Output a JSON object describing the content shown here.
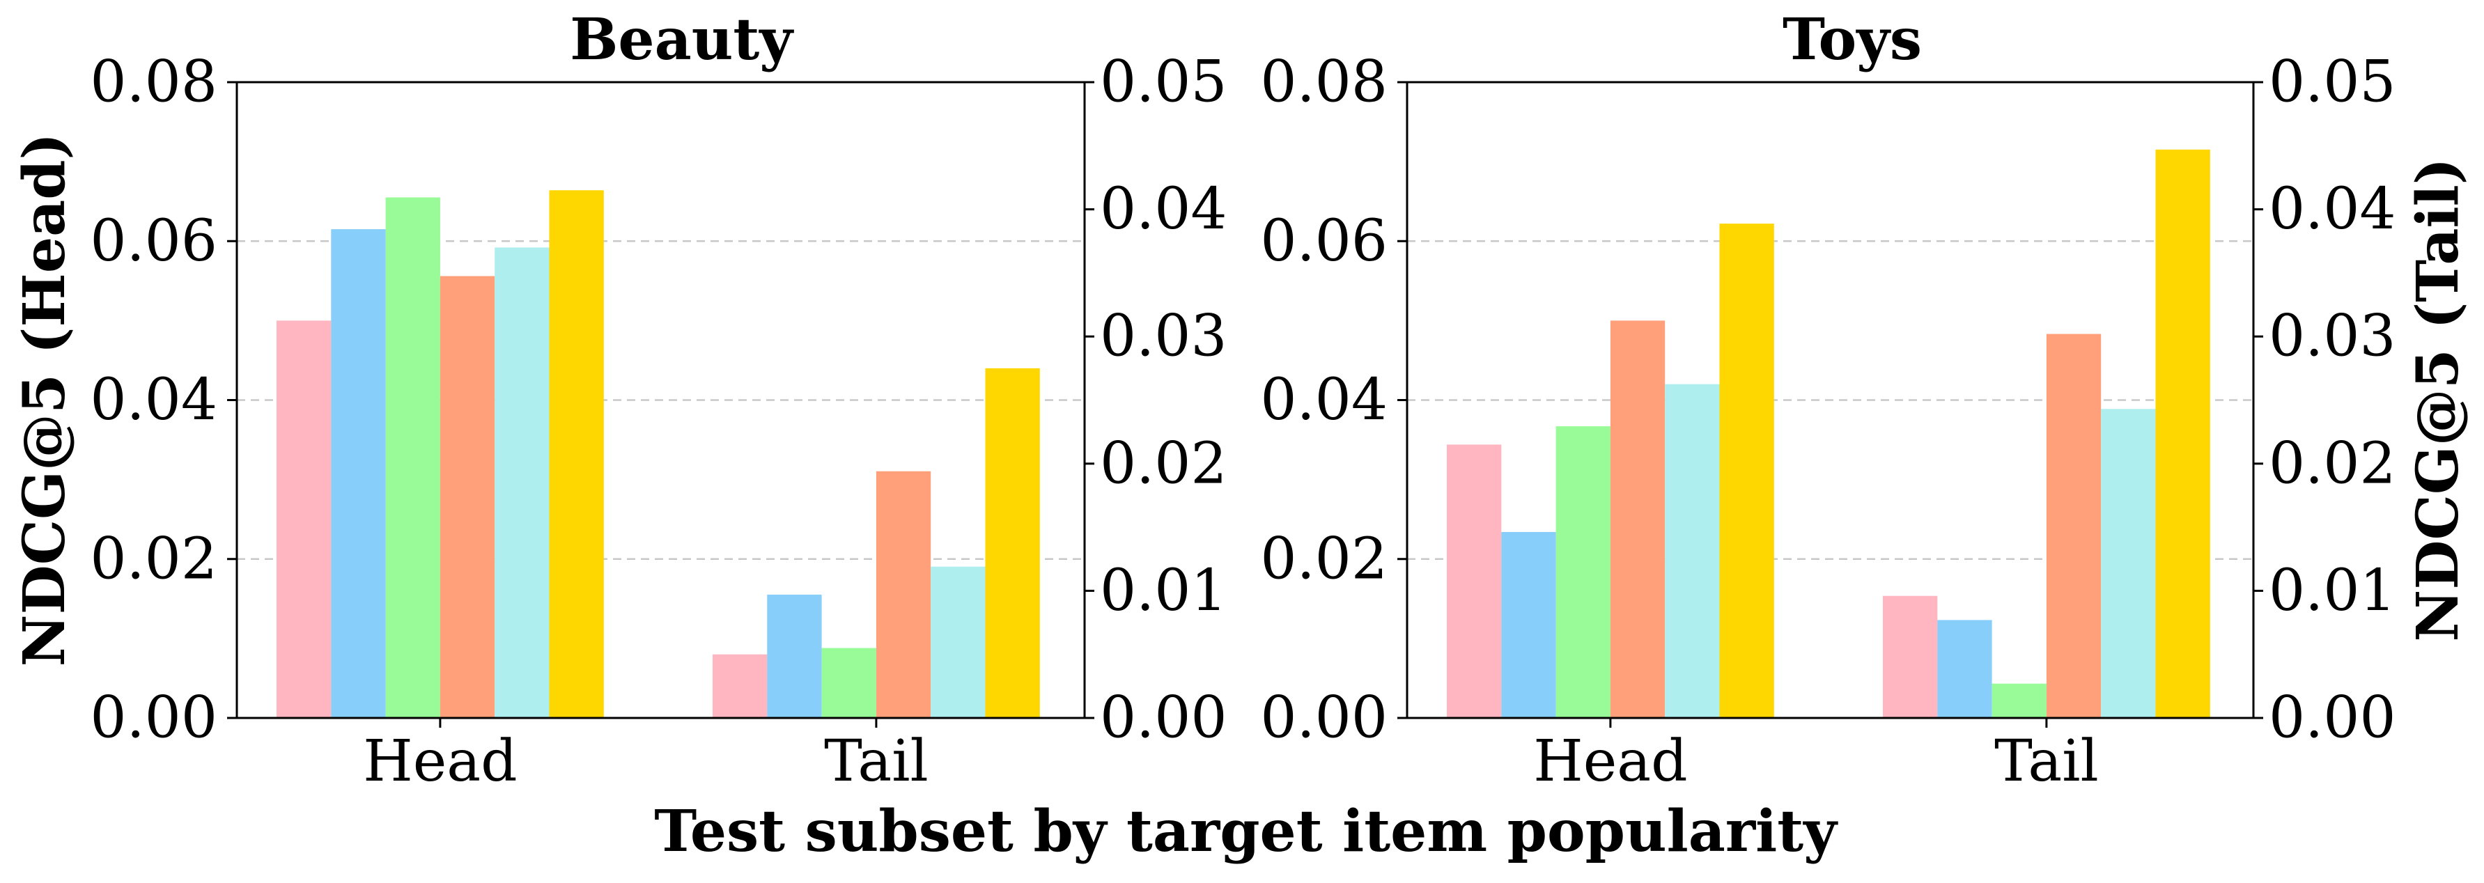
{
  "xlabel": "Test subset by target item popularity",
  "ylabel_left": "NDCG@5 (Head)",
  "ylabel_right": "NDCG@5 (Tail)",
  "colors": {
    "series": [
      "#FFB6C1",
      "#87CEFA",
      "#98FB98",
      "#FFA07A",
      "#AFEEEE",
      "#FFD700"
    ],
    "grid": "#c8c8c8",
    "axis": "#000000"
  },
  "chart_data": [
    {
      "type": "bar",
      "title": "Beauty",
      "categories": [
        "Head",
        "Tail"
      ],
      "left_axis": {
        "ylim": [
          0,
          0.08
        ],
        "ticks": [
          "0.00",
          "0.02",
          "0.04",
          "0.06",
          "0.08"
        ],
        "applies_to": "Head"
      },
      "right_axis": {
        "ylim": [
          0,
          0.05
        ],
        "ticks": [
          "0.00",
          "0.01",
          "0.02",
          "0.03",
          "0.04",
          "0.05"
        ],
        "applies_to": "Tail"
      },
      "grid": "horizontal dashed at 0.02, 0.04, 0.06",
      "legend": "none",
      "series": [
        {
          "values": [
            0.05,
            0.005
          ]
        },
        {
          "values": [
            0.0615,
            0.0097
          ]
        },
        {
          "values": [
            0.0655,
            0.0055
          ]
        },
        {
          "values": [
            0.0556,
            0.0194
          ]
        },
        {
          "values": [
            0.0592,
            0.0119
          ]
        },
        {
          "values": [
            0.0664,
            0.0275
          ]
        }
      ]
    },
    {
      "type": "bar",
      "title": "Toys",
      "categories": [
        "Head",
        "Tail"
      ],
      "left_axis": {
        "ylim": [
          0,
          0.08
        ],
        "ticks": [
          "0.00",
          "0.02",
          "0.04",
          "0.06",
          "0.08"
        ],
        "applies_to": "Head"
      },
      "right_axis": {
        "ylim": [
          0,
          0.05
        ],
        "ticks": [
          "0.00",
          "0.01",
          "0.02",
          "0.03",
          "0.04",
          "0.05"
        ],
        "applies_to": "Tail"
      },
      "grid": "horizontal dashed at 0.02, 0.04, 0.06",
      "legend": "none",
      "series": [
        {
          "values": [
            0.0344,
            0.0096
          ]
        },
        {
          "values": [
            0.0234,
            0.0077
          ]
        },
        {
          "values": [
            0.0367,
            0.0027
          ]
        },
        {
          "values": [
            0.05,
            0.0302
          ]
        },
        {
          "values": [
            0.042,
            0.0243
          ]
        },
        {
          "values": [
            0.0622,
            0.0447
          ]
        }
      ]
    }
  ]
}
